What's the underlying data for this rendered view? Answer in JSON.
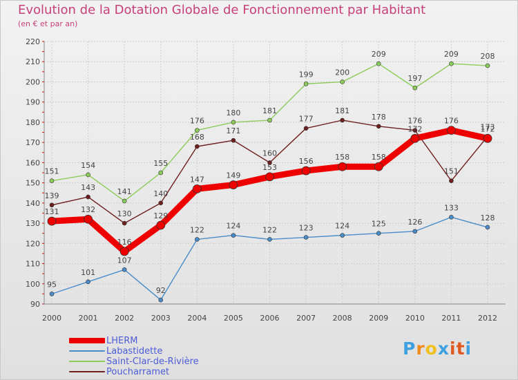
{
  "title": "Evolution de la Dotation Globale de Fonctionnement par Habitant",
  "subtitle": "(en € et par an)",
  "logo": {
    "letters": [
      "P",
      "r",
      "o",
      "x",
      "i",
      "t",
      "i"
    ],
    "colors": [
      "#3fa0e0",
      "#f08a1c",
      "#f0c020",
      "#3fa0e0",
      "#e05a20",
      "#e05a20",
      "#3fa0e0"
    ]
  },
  "chart_data": {
    "type": "line",
    "title": "Evolution de la Dotation Globale de Fonctionnement par Habitant",
    "subtitle": "(en € et par an)",
    "xlabel": "",
    "ylabel": "",
    "ylim": [
      90,
      220
    ],
    "yticks": [
      90,
      100,
      110,
      120,
      130,
      140,
      150,
      160,
      170,
      180,
      190,
      200,
      210,
      220
    ],
    "grid": true,
    "legend_position": "bottom-left",
    "x": [
      "2000",
      "2001",
      "2002",
      "2003",
      "2004",
      "2005",
      "2006",
      "2007",
      "2008",
      "2009",
      "2010",
      "2011",
      "2012"
    ],
    "series": [
      {
        "name": "LHERM",
        "color": "#ee0000",
        "width": 9,
        "marker": 6,
        "values": [
          131,
          132,
          116,
          129,
          147,
          149,
          153,
          156,
          158,
          158,
          172,
          176,
          172
        ]
      },
      {
        "name": "Labastidette",
        "color": "#4a8cc8",
        "width": 1.4,
        "marker": 3,
        "values": [
          95,
          101,
          107,
          92,
          122,
          124,
          122,
          123,
          124,
          125,
          126,
          133,
          128
        ]
      },
      {
        "name": "Saint-Clar-de-Rivière",
        "color": "#8ccc5a",
        "width": 1.4,
        "marker": 3,
        "values": [
          151,
          154,
          141,
          155,
          176,
          180,
          181,
          199,
          200,
          209,
          197,
          209,
          208
        ]
      },
      {
        "name": "Poucharramet",
        "color": "#6e1e1e",
        "width": 1.4,
        "marker": 3,
        "values": [
          139,
          143,
          130,
          140,
          168,
          171,
          160,
          177,
          181,
          178,
          176,
          151,
          173
        ]
      }
    ]
  }
}
